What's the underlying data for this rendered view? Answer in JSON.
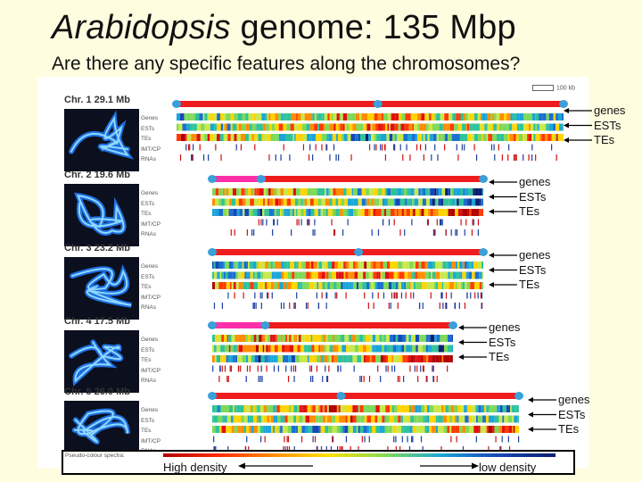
{
  "header": {
    "title_italic": "Arabidopsis",
    "title_rest": " genome: 135 Mbp",
    "subtitle": "Are there any specific features along the chromosomes?"
  },
  "scale_bar": "100 kb",
  "track_names": [
    "Genes",
    "ESTs",
    "TEs",
    "IMT/CP",
    "RNAs"
  ],
  "chromosomes": [
    {
      "label": "Chr. 1  29.1 Mb",
      "annotations": [
        "genes",
        "ESTs",
        "TEs"
      ]
    },
    {
      "label": "Chr. 2  19.6 Mb",
      "annotations": [
        "genes",
        "ESTs",
        "TEs"
      ]
    },
    {
      "label": "Chr. 3  23.2 Mb",
      "annotations": [
        "genes",
        "ESTs",
        "TEs"
      ]
    },
    {
      "label": "Chr. 4  17.5 Mb",
      "annotations": [
        "genes",
        "ESTs",
        "TEs"
      ]
    },
    {
      "label": "Chr. 5  26.0 Mb",
      "annotations": [
        "genes",
        "ESTs",
        "TEs"
      ]
    }
  ],
  "legend": {
    "pseudo": "Pseudo-colour spectra:",
    "high": "High density",
    "low": "low density",
    "colors": [
      "#b00000",
      "#ff2a00",
      "#ff8c00",
      "#ffe100",
      "#7ed957",
      "#1aa5d8",
      "#1447b8",
      "#0a1e6e"
    ]
  }
}
